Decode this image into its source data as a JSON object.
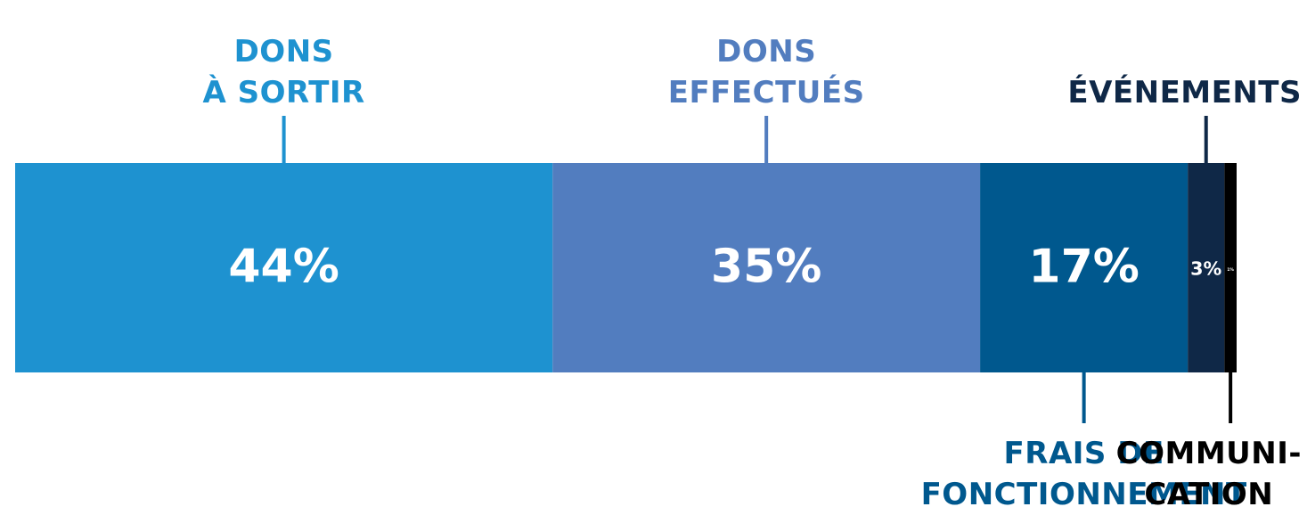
{
  "chart_data": {
    "type": "stacked_bar",
    "categories": [
      [
        "DONS",
        "À SORTIR"
      ],
      [
        "DONS",
        "EFFECTUÉS"
      ],
      [
        "FRAIS DE",
        "FONCTIONNEMENT"
      ],
      [
        "ÉVÉNEMENTS"
      ],
      [
        "COMMUNI-",
        "CATION"
      ]
    ],
    "values": [
      44,
      35,
      17,
      3,
      1
    ],
    "value_labels": [
      "44%",
      "35%",
      "17%",
      "3%",
      "1%"
    ],
    "colors": [
      "#1e92d0",
      "#527dbf",
      "#00588e",
      "#0f2847",
      "#000000"
    ],
    "xlim": [
      0,
      100
    ]
  }
}
